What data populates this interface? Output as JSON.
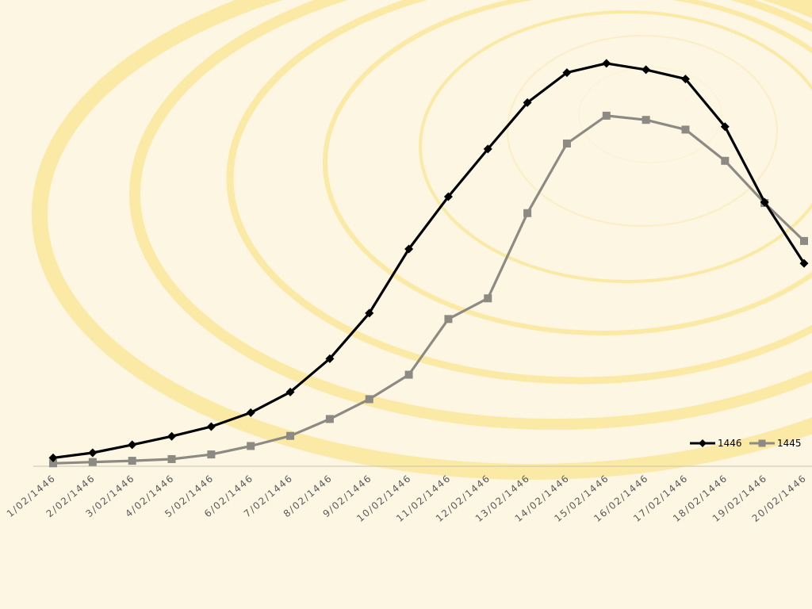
{
  "colors": {
    "background": "#fdf6e3",
    "swirl": "#fbe9a6",
    "swirl_light": "#fbedc0",
    "axis": "#c8c2b0"
  },
  "chart_data": {
    "type": "line",
    "categories": [
      "1/02/1446",
      "2/02/1446",
      "3/02/1446",
      "4/02/1446",
      "5/02/1446",
      "6/02/1446",
      "7/02/1446",
      "8/02/1446",
      "9/02/1446",
      "10/02/1446",
      "11/02/1446",
      "12/02/1446",
      "13/02/1446",
      "14/02/1446",
      "15/02/1446",
      "16/02/1446",
      "17/02/1446",
      "18/02/1446",
      "19/02/1446",
      "20/02/1446"
    ],
    "series": [
      {
        "name": "1446",
        "color": "#000000",
        "marker": "diamond",
        "values": [
          2,
          3.2,
          5.1,
          7.1,
          9.4,
          12.7,
          17.6,
          25.5,
          36.3,
          51.5,
          63.9,
          75.2,
          86.2,
          93.3,
          95.5,
          94.0,
          91.8,
          80.5,
          62.6,
          48.1
        ]
      },
      {
        "name": "1445",
        "color": "#8c8a83",
        "marker": "square",
        "values": [
          0.7,
          1,
          1.3,
          1.7,
          2.8,
          4.8,
          7.2,
          11.2,
          15.9,
          21.7,
          34.9,
          39.8,
          60.0,
          76.5,
          83.1,
          82.1,
          79.8,
          72.4,
          62.4,
          53.4
        ]
      }
    ],
    "ylim": [
      0,
      103
    ],
    "grid": false,
    "legend_position": "bottom-right"
  }
}
